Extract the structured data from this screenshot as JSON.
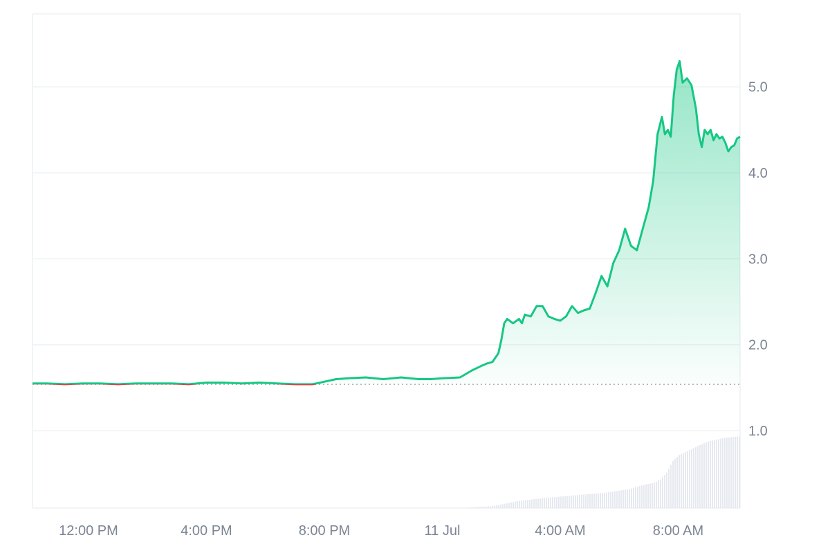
{
  "colors": {
    "up": "#16c784",
    "down": "#ea3943",
    "grid": "#eff2f5",
    "axis_text": "#7b8594",
    "volume": "#e6e9ef",
    "baseline": "#9aa3af"
  },
  "chart_data": {
    "type": "area",
    "title": "",
    "xlabel": "",
    "ylabel": "",
    "x_tick_labels": [
      "12:00 PM",
      "4:00 PM",
      "8:00 PM",
      "11 Jul",
      "4:00 AM",
      "8:00 AM"
    ],
    "x_tick_hours": [
      12,
      16,
      20,
      24,
      28,
      32
    ],
    "x_range_hours": [
      10.1,
      34.1
    ],
    "y_ticks": [
      "1.0",
      "2.0",
      "3.0",
      "4.0",
      "5.0"
    ],
    "y_tick_values": [
      1.0,
      2.0,
      3.0,
      4.0,
      5.0
    ],
    "ylim": [
      0.1,
      5.85
    ],
    "baseline_value": 1.54,
    "grid": true,
    "series": [
      {
        "x_hours": [
          10.1,
          10.6,
          11.2,
          11.8,
          12.4,
          13.0,
          13.6,
          14.2,
          14.8,
          15.4,
          16.0,
          16.6,
          17.2,
          17.8,
          18.4,
          19.0,
          19.6,
          20.0,
          20.4,
          20.8,
          21.4,
          22.0,
          22.6,
          23.2,
          23.6,
          24.0,
          24.6,
          25.0,
          25.3,
          25.5,
          25.7,
          25.9,
          26.0,
          26.1,
          26.2,
          26.4,
          26.6,
          26.7,
          26.8,
          27.0,
          27.2,
          27.4,
          27.6,
          27.8,
          28.0,
          28.2,
          28.4,
          28.6,
          28.8,
          29.0,
          29.2,
          29.4,
          29.6,
          29.8,
          30.0,
          30.2,
          30.4,
          30.6,
          30.8,
          31.0,
          31.15,
          31.3,
          31.45,
          31.55,
          31.65,
          31.75,
          31.85,
          31.95,
          32.05,
          32.15,
          32.3,
          32.45,
          32.6,
          32.7,
          32.8,
          32.9,
          33.0,
          33.1,
          33.2,
          33.3,
          33.4,
          33.5,
          33.6,
          33.7,
          33.8,
          33.9,
          34.0,
          34.1
        ],
        "values": [
          1.55,
          1.55,
          1.54,
          1.55,
          1.55,
          1.54,
          1.55,
          1.55,
          1.55,
          1.54,
          1.56,
          1.56,
          1.55,
          1.56,
          1.55,
          1.54,
          1.54,
          1.57,
          1.6,
          1.61,
          1.62,
          1.6,
          1.62,
          1.6,
          1.6,
          1.61,
          1.62,
          1.7,
          1.75,
          1.78,
          1.8,
          1.9,
          2.05,
          2.25,
          2.3,
          2.25,
          2.3,
          2.25,
          2.35,
          2.33,
          2.45,
          2.45,
          2.33,
          2.3,
          2.28,
          2.33,
          2.45,
          2.37,
          2.4,
          2.42,
          2.6,
          2.8,
          2.68,
          2.95,
          3.1,
          3.35,
          3.15,
          3.1,
          3.35,
          3.6,
          3.9,
          4.45,
          4.65,
          4.45,
          4.5,
          4.42,
          4.9,
          5.2,
          5.3,
          5.05,
          5.1,
          5.02,
          4.75,
          4.45,
          4.3,
          4.5,
          4.45,
          4.5,
          4.38,
          4.45,
          4.4,
          4.42,
          4.35,
          4.25,
          4.3,
          4.32,
          4.4,
          4.42
        ]
      }
    ],
    "volume": {
      "x_hours": [
        10.1,
        24.5,
        25.6,
        26.1,
        26.5,
        27.5,
        28.5,
        29.5,
        30.3,
        30.8,
        31.2,
        31.4,
        31.6,
        31.8,
        32.0,
        32.2,
        32.6,
        33.0,
        33.5,
        34.1
      ],
      "values": [
        0.0,
        0.0,
        0.02,
        0.05,
        0.08,
        0.12,
        0.15,
        0.18,
        0.22,
        0.27,
        0.3,
        0.34,
        0.42,
        0.55,
        0.62,
        0.65,
        0.72,
        0.78,
        0.82,
        0.84
      ]
    }
  }
}
